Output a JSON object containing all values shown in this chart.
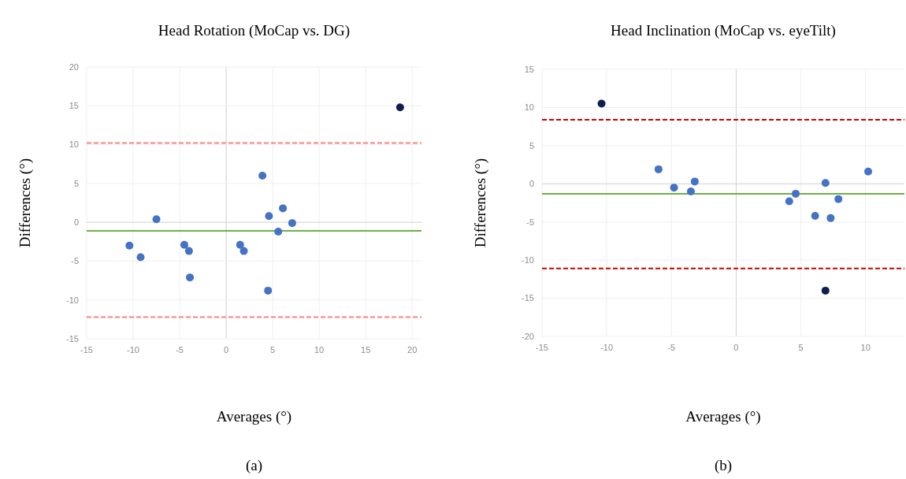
{
  "chart_data": [
    {
      "type": "scatter",
      "title": "Head Rotation (MoCap vs. DG)",
      "xlabel": "Averages (°)",
      "ylabel": "Differences (°)",
      "annotations": [
        "(a)"
      ],
      "xlim": [
        -15,
        21
      ],
      "xticks": [
        -15,
        -10,
        -5,
        0,
        5,
        10,
        15,
        20
      ],
      "ylim": [
        -15,
        20
      ],
      "yticks": [
        -15,
        -10,
        -5,
        0,
        5,
        10,
        15,
        20
      ],
      "grid": true,
      "marker": "circle",
      "series": [
        {
          "color": "#4472c4",
          "x": [
            -10.4,
            -9.2,
            -7.5,
            -4.5,
            -4.0,
            -3.9,
            1.5,
            1.9,
            3.9,
            4.6,
            6.1,
            7.1,
            5.6,
            4.5
          ],
          "values": [
            -3.0,
            -4.5,
            0.4,
            -2.9,
            -3.7,
            -7.1,
            -2.9,
            -3.7,
            6.0,
            0.8,
            1.8,
            -0.1,
            -1.2,
            -8.8
          ]
        },
        {
          "color": "#0d1f4f",
          "x": [
            18.7
          ],
          "values": [
            14.8
          ]
        }
      ],
      "ref_lines": [
        {
          "axis": "y",
          "value": 10.2,
          "color": "#ff8080",
          "line_style": "dashed"
        },
        {
          "axis": "y",
          "value": -12.2,
          "color": "#ff8080",
          "line_style": "dashed"
        },
        {
          "axis": "y",
          "value": -1.1,
          "color": "#70ad47",
          "line_style": "solid"
        }
      ]
    },
    {
      "type": "scatter",
      "title": "Head Inclination (MoCap vs. eyeTilt)",
      "xlabel": "Averages (°)",
      "ylabel": "Differences (°)",
      "annotations": [
        "(b)"
      ],
      "xlim": [
        -15,
        13
      ],
      "xticks": [
        -15,
        -10,
        -5,
        0,
        5,
        10
      ],
      "ylim": [
        -20,
        15
      ],
      "yticks": [
        -20,
        -15,
        -10,
        -5,
        0,
        5,
        10,
        15
      ],
      "grid": true,
      "marker": "circle",
      "series": [
        {
          "color": "#4472c4",
          "x": [
            -6.0,
            -4.8,
            -3.2,
            -3.5,
            4.6,
            4.1,
            6.9,
            7.9,
            10.2,
            6.1,
            7.3
          ],
          "values": [
            1.9,
            -0.5,
            0.3,
            -1.0,
            -1.3,
            -2.3,
            0.1,
            -2.0,
            1.6,
            -4.2,
            -4.5
          ]
        },
        {
          "color": "#0d1f4f",
          "x": [
            -10.4,
            6.9
          ],
          "values": [
            10.5,
            -14.0
          ]
        }
      ],
      "ref_lines": [
        {
          "axis": "y",
          "value": 8.4,
          "color": "#cc0000",
          "line_style": "dashed"
        },
        {
          "axis": "y",
          "value": -11.1,
          "color": "#cc0000",
          "line_style": "dashed"
        },
        {
          "axis": "y",
          "value": -1.3,
          "color": "#70ad47",
          "line_style": "solid"
        }
      ]
    }
  ]
}
